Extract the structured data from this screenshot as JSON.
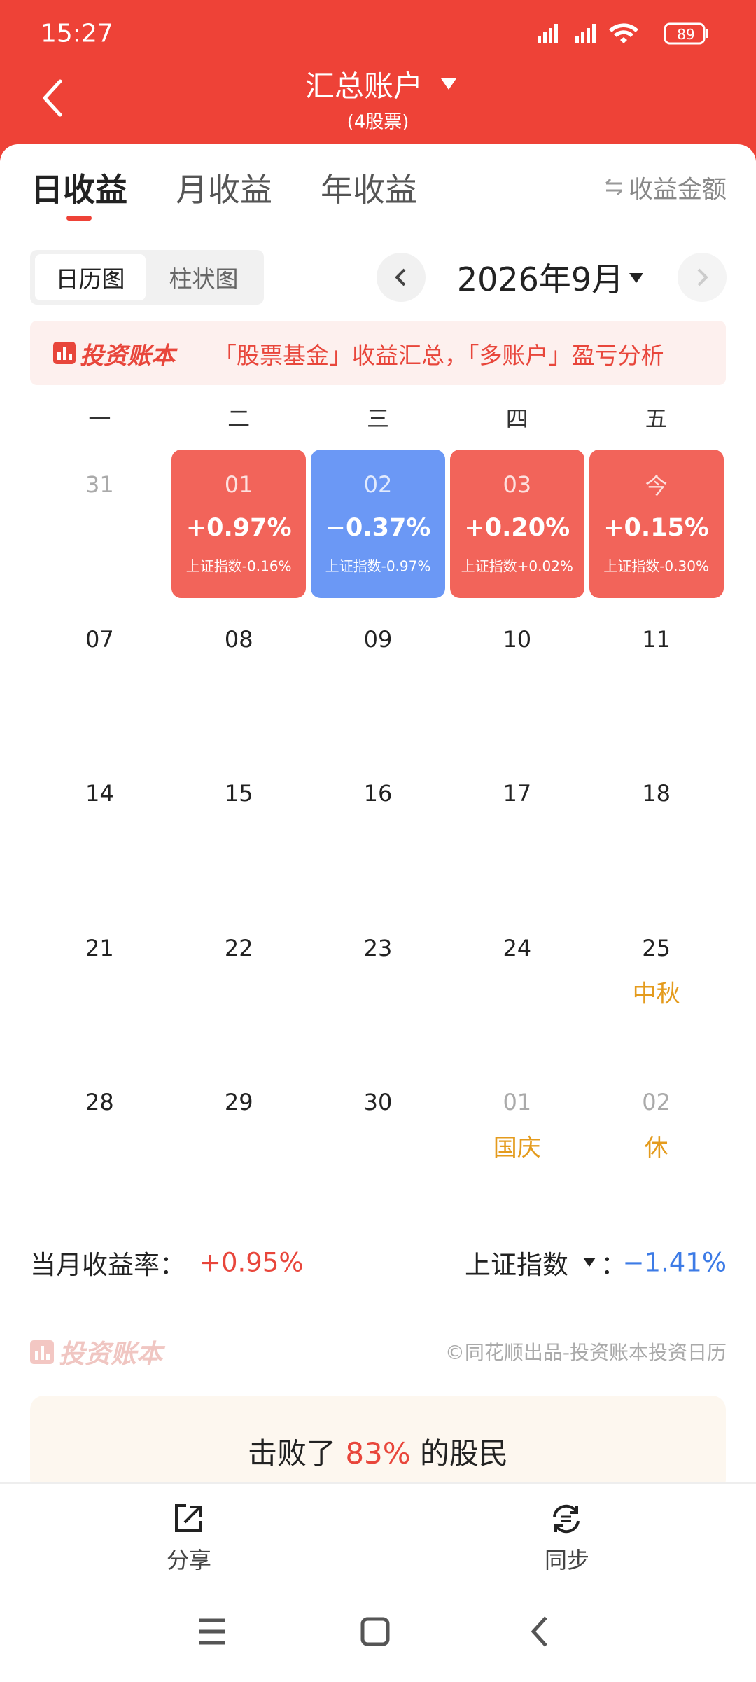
{
  "status_bar": {
    "time": "15:27",
    "battery": "89"
  },
  "header": {
    "title": "汇总账户",
    "subtitle": "(4股票)"
  },
  "tabs": {
    "items": [
      "日收益",
      "月收益",
      "年收益"
    ],
    "toggle": "收益金额"
  },
  "view_toggle": [
    "日历图",
    "柱状图"
  ],
  "month": "2026年9月",
  "banner": {
    "brand": "投资账本",
    "text": "「股票基金」收益汇总，「多账户」盈亏分析"
  },
  "calendar": {
    "weekdays": [
      "一",
      "二",
      "三",
      "四",
      "五"
    ],
    "rows": [
      [
        {
          "day": "31",
          "muted": true
        },
        {
          "day": "01",
          "value": "+0.97%",
          "index": "上证指数-0.16%",
          "color": "#f2645a"
        },
        {
          "day": "02",
          "value": "−0.37%",
          "index": "上证指数-0.97%",
          "color": "#6b98f5"
        },
        {
          "day": "03",
          "value": "+0.20%",
          "index": "上证指数+0.02%",
          "color": "#f2645a"
        },
        {
          "day": "今",
          "value": "+0.15%",
          "index": "上证指数-0.30%",
          "color": "#f2645a"
        }
      ],
      [
        {
          "day": "07"
        },
        {
          "day": "08"
        },
        {
          "day": "09"
        },
        {
          "day": "10"
        },
        {
          "day": "11"
        }
      ],
      [
        {
          "day": "14"
        },
        {
          "day": "15"
        },
        {
          "day": "16"
        },
        {
          "day": "17"
        },
        {
          "day": "18"
        }
      ],
      [
        {
          "day": "21"
        },
        {
          "day": "22"
        },
        {
          "day": "23"
        },
        {
          "day": "24"
        },
        {
          "day": "25",
          "holiday": "中秋"
        }
      ],
      [
        {
          "day": "28"
        },
        {
          "day": "29"
        },
        {
          "day": "30"
        },
        {
          "day": "01",
          "muted": true,
          "holiday": "国庆"
        },
        {
          "day": "02",
          "muted": true,
          "holiday": "休"
        }
      ]
    ]
  },
  "summary": {
    "label": "当月收益率：",
    "value": "+0.95%",
    "index_label": "上证指数",
    "index_sep": "：",
    "index_value": "−1.41%"
  },
  "footer": {
    "brand": "投资账本",
    "credit": "©同花顺出品-投资账本投资日历"
  },
  "rank_card": {
    "prefix": "击败了",
    "value": "83%",
    "suffix": "的股民"
  },
  "bottom_bar": {
    "share": "分享",
    "sync": "同步"
  }
}
